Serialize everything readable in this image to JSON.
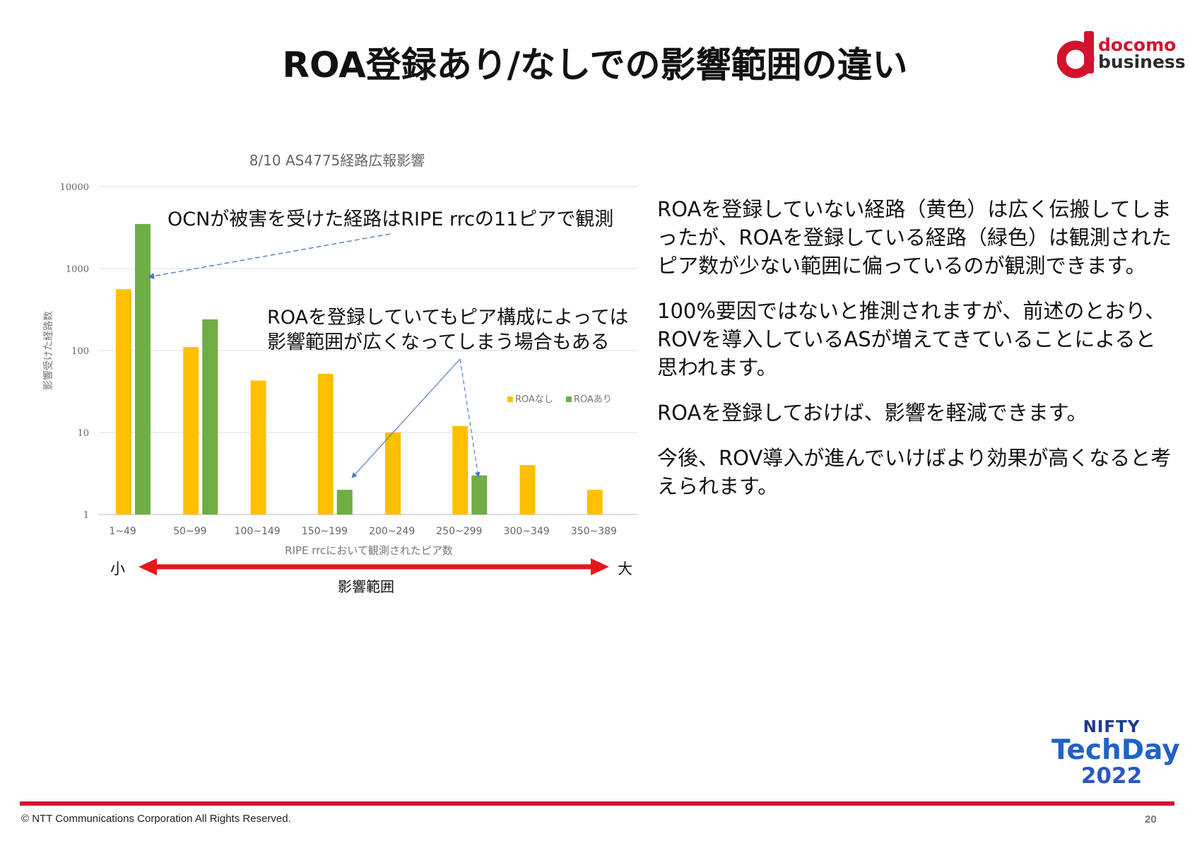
{
  "slide": {
    "title": "ROA登録あり/なしでの影響範囲の違い",
    "page_number": "20",
    "copyright": "© NTT Communications Corporation All Rights Reserved."
  },
  "logo": {
    "line1": "docomo",
    "line2": "business",
    "color": "#d4122f"
  },
  "event_logo": {
    "top": "NIFTY",
    "middle": "TechDay",
    "year": "2022"
  },
  "chart_data": {
    "type": "bar",
    "title": "8/10 AS4775経路広報影響",
    "xlabel": "RIPE rrcにおいて観測されたピア数",
    "ylabel": "影響受けた経路数",
    "y_scale": "log",
    "ylim": [
      1,
      10000
    ],
    "y_ticks": [
      "1",
      "10",
      "100",
      "1000",
      "10000"
    ],
    "categories": [
      "1~49",
      "50~99",
      "100~149",
      "150~199",
      "200~249",
      "250~299",
      "300~349",
      "350~389"
    ],
    "series": [
      {
        "name": "ROAなし",
        "color": "#ffc000",
        "values": [
          560,
          110,
          43,
          52,
          10,
          12,
          4,
          2
        ]
      },
      {
        "name": "ROAあり",
        "color": "#70ad47",
        "values": [
          3500,
          240,
          null,
          2,
          null,
          3,
          null,
          null
        ]
      }
    ],
    "legend": "right",
    "grid": true
  },
  "annotations": {
    "ocn": "OCNが被害を受けた経路はRIPE rrcの11ピアで観測",
    "roa_line1": "ROAを登録していてもピア構成によっては",
    "roa_line2": "影響範囲が広くなってしまう場合もある",
    "scale_small": "小",
    "scale_large": "大",
    "scale_label": "影響範囲"
  },
  "body": {
    "p1": "ROAを登録していない経路（黄色）は広く伝搬してしまったが、ROAを登録している経路（緑色）は観測されたピア数が少ない範囲に偏っているのが観測できます。",
    "p2": "100%要因ではないと推測されますが、前述のとおり、ROVを導入しているASが増えてきていることによると思われます。",
    "p3": "ROAを登録しておけば、影響を軽減できます。",
    "p4": "今後、ROV導入が進んでいけばより効果が高くなると考えられます。"
  }
}
